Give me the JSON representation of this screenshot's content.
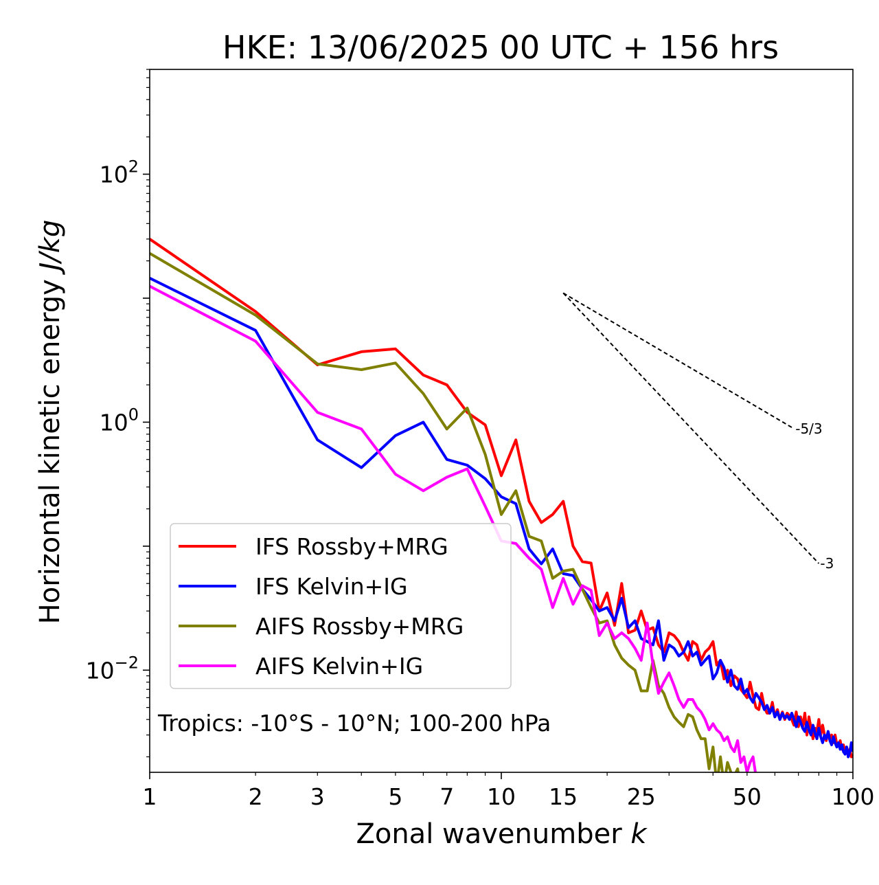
{
  "chart_data": {
    "type": "line",
    "title": "HKE: 13/06/2025 00 UTC + 156 hrs",
    "xlabel": "Zonal wavenumber",
    "xlabel_var": "k",
    "ylabel": "Horizontal kinetic energy",
    "ylabel_unit": "J/kg",
    "xscale": "log",
    "yscale": "log",
    "xlim": [
      1,
      100
    ],
    "ylim": [
      0.0015,
      700
    ],
    "x_ticks": [
      1,
      2,
      3,
      5,
      7,
      10,
      15,
      25,
      50,
      100
    ],
    "x_tick_labels": [
      "1",
      "2",
      "3",
      "5",
      "7",
      "10",
      "15",
      "25",
      "50",
      "100"
    ],
    "y_ticks": [
      0.01,
      1,
      100
    ],
    "y_tick_labels": [
      {
        "base": "10",
        "exp": "−2"
      },
      {
        "base": "10",
        "exp": "0"
      },
      {
        "base": "10",
        "exp": "2"
      }
    ],
    "grid": false,
    "legend_position": "lower-left",
    "annotation": "Tropics: -10°S - 10°N; 100-200 hPa",
    "reference_slopes": [
      {
        "label": "-5/3",
        "slope": -1.6667,
        "x_start": 15,
        "y_start": 11,
        "x_end": 68
      },
      {
        "label": "-3",
        "slope": -3,
        "x_start": 15,
        "y_start": 11,
        "x_end": 80
      }
    ],
    "series": [
      {
        "name": "IFS Rossby+MRG",
        "color": "#ff0000",
        "x": [
          1,
          2,
          3,
          4,
          5,
          6,
          7,
          8,
          9,
          10,
          11,
          12,
          13,
          14,
          15,
          16,
          17,
          18,
          19,
          20,
          21,
          22,
          23,
          24,
          25,
          26,
          27,
          28,
          29,
          30,
          31,
          32,
          33,
          34,
          35,
          36,
          37,
          38,
          39,
          40,
          41,
          42,
          43,
          44,
          45,
          46,
          47,
          48,
          49,
          50,
          51,
          52,
          53,
          54,
          55,
          56,
          57,
          58,
          59,
          60,
          61,
          62,
          63,
          64,
          65,
          66,
          67,
          68,
          69,
          70,
          71,
          72,
          73,
          74,
          75,
          76,
          77,
          78,
          79,
          80,
          81,
          82,
          83,
          84,
          85,
          86,
          87,
          88,
          89,
          90,
          91,
          92,
          93,
          94,
          95,
          96,
          97,
          98,
          99,
          100
        ],
        "y": [
          30,
          7.8,
          2.9,
          3.7,
          3.9,
          2.4,
          2.0,
          1.2,
          0.95,
          0.37,
          0.72,
          0.23,
          0.155,
          0.18,
          0.23,
          0.1,
          0.075,
          0.073,
          0.03,
          0.042,
          0.023,
          0.05,
          0.02,
          0.021,
          0.03,
          0.021,
          0.022,
          0.016,
          0.014,
          0.02,
          0.019,
          0.017,
          0.014,
          0.012,
          0.017,
          0.016,
          0.012,
          0.014,
          0.015,
          0.017,
          0.011,
          0.012,
          0.0085,
          0.01,
          0.0075,
          0.009,
          0.0085,
          0.007,
          0.0065,
          0.006,
          0.008,
          0.0062,
          0.005,
          0.0048,
          0.0065,
          0.005,
          0.0045,
          0.0045,
          0.0055,
          0.0042,
          0.0048,
          0.004,
          0.0046,
          0.004,
          0.0045,
          0.0043,
          0.004,
          0.0036,
          0.0046,
          0.0035,
          0.0042,
          0.0035,
          0.0045,
          0.003,
          0.0042,
          0.0034,
          0.0028,
          0.0034,
          0.0032,
          0.004,
          0.003,
          0.0036,
          0.003,
          0.0027,
          0.0032,
          0.0028,
          0.003,
          0.0026,
          0.003,
          0.0025,
          0.0025,
          0.0027,
          0.0023,
          0.0025,
          0.0022,
          0.0024,
          0.0021,
          0.0023,
          0.002,
          0.0021
        ]
      },
      {
        "name": "IFS Kelvin+IG",
        "color": "#0000ff",
        "x": [
          1,
          2,
          3,
          4,
          5,
          6,
          7,
          8,
          9,
          10,
          11,
          12,
          13,
          14,
          15,
          16,
          17,
          18,
          19,
          20,
          21,
          22,
          23,
          24,
          25,
          26,
          27,
          28,
          29,
          30,
          31,
          32,
          33,
          34,
          35,
          36,
          37,
          38,
          39,
          40,
          41,
          42,
          43,
          44,
          45,
          46,
          47,
          48,
          49,
          50,
          51,
          52,
          53,
          54,
          55,
          56,
          57,
          58,
          59,
          60,
          61,
          62,
          63,
          64,
          65,
          66,
          67,
          68,
          69,
          70,
          71,
          72,
          73,
          74,
          75,
          76,
          77,
          78,
          79,
          80,
          81,
          82,
          83,
          84,
          85,
          86,
          87,
          88,
          89,
          90,
          91,
          92,
          93,
          94,
          95,
          96,
          97,
          98,
          99,
          100
        ],
        "y": [
          14.5,
          5.5,
          0.72,
          0.43,
          0.78,
          1.0,
          0.5,
          0.45,
          0.35,
          0.25,
          0.22,
          0.095,
          0.072,
          0.095,
          0.06,
          0.058,
          0.045,
          0.037,
          0.03,
          0.032,
          0.025,
          0.038,
          0.022,
          0.025,
          0.018,
          0.017,
          0.016,
          0.025,
          0.012,
          0.016,
          0.015,
          0.013,
          0.014,
          0.017,
          0.013,
          0.014,
          0.011,
          0.012,
          0.013,
          0.0085,
          0.0095,
          0.012,
          0.0105,
          0.008,
          0.01,
          0.0075,
          0.007,
          0.0085,
          0.0065,
          0.007,
          0.006,
          0.0055,
          0.0065,
          0.006,
          0.0055,
          0.0048,
          0.0052,
          0.0045,
          0.005,
          0.0042,
          0.0046,
          0.004,
          0.0045,
          0.0041,
          0.0043,
          0.004,
          0.0045,
          0.004,
          0.0035,
          0.0042,
          0.0038,
          0.0034,
          0.0032,
          0.0038,
          0.0033,
          0.003,
          0.0036,
          0.0031,
          0.0028,
          0.0034,
          0.0029,
          0.0026,
          0.003,
          0.0028,
          0.0032,
          0.0027,
          0.0025,
          0.0029,
          0.0026,
          0.0024,
          0.0026,
          0.0023,
          0.0025,
          0.0022,
          0.0021,
          0.0024,
          0.002,
          0.0022,
          0.0026,
          0.0022
        ]
      },
      {
        "name": "AIFS Rossby+MRG",
        "color": "#808000",
        "x": [
          1,
          2,
          3,
          4,
          5,
          6,
          7,
          8,
          9,
          10,
          11,
          12,
          13,
          14,
          15,
          16,
          17,
          18,
          19,
          20,
          21,
          22,
          23,
          24,
          25,
          26,
          27,
          28,
          29,
          30,
          31,
          32,
          33,
          34,
          35,
          36,
          37,
          38,
          39,
          40,
          41,
          42,
          43,
          44,
          45,
          46,
          47,
          48,
          49,
          50
        ],
        "y": [
          23,
          7.3,
          2.95,
          2.65,
          3.0,
          1.7,
          0.88,
          1.3,
          0.55,
          0.18,
          0.28,
          0.12,
          0.11,
          0.055,
          0.063,
          0.065,
          0.045,
          0.032,
          0.024,
          0.025,
          0.016,
          0.0125,
          0.011,
          0.01,
          0.0068,
          0.0068,
          0.012,
          0.0075,
          0.0065,
          0.005,
          0.0042,
          0.0038,
          0.0035,
          0.0044,
          0.0042,
          0.0033,
          0.0028,
          0.0028,
          0.0016,
          0.0024,
          0.0012,
          0.002,
          0.0012,
          0.0018,
          0.0015,
          0.0014,
          0.0016,
          0.0011,
          0.0013,
          0.0014
        ]
      },
      {
        "name": "AIFS Kelvin+IG",
        "color": "#ff00ff",
        "x": [
          1,
          2,
          3,
          4,
          5,
          6,
          7,
          8,
          9,
          10,
          11,
          12,
          13,
          14,
          15,
          16,
          17,
          18,
          19,
          20,
          21,
          22,
          23,
          24,
          25,
          26,
          27,
          28,
          29,
          30,
          31,
          32,
          33,
          34,
          35,
          36,
          37,
          38,
          39,
          40,
          41,
          42,
          43,
          44,
          45,
          46,
          47,
          48,
          49,
          50,
          51,
          52,
          53
        ],
        "y": [
          12.5,
          4.5,
          1.2,
          0.88,
          0.38,
          0.28,
          0.36,
          0.42,
          0.21,
          0.11,
          0.105,
          0.08,
          0.065,
          0.032,
          0.055,
          0.034,
          0.048,
          0.044,
          0.019,
          0.024,
          0.018,
          0.02,
          0.018,
          0.015,
          0.012,
          0.024,
          0.011,
          0.0065,
          0.008,
          0.0095,
          0.0075,
          0.0058,
          0.005,
          0.0058,
          0.0058,
          0.005,
          0.0046,
          0.004,
          0.0033,
          0.0037,
          0.0033,
          0.0031,
          0.0027,
          0.0029,
          0.0024,
          0.0022,
          0.0027,
          0.0018,
          0.002,
          0.0015,
          0.0018,
          0.002,
          0.0014
        ]
      }
    ]
  }
}
